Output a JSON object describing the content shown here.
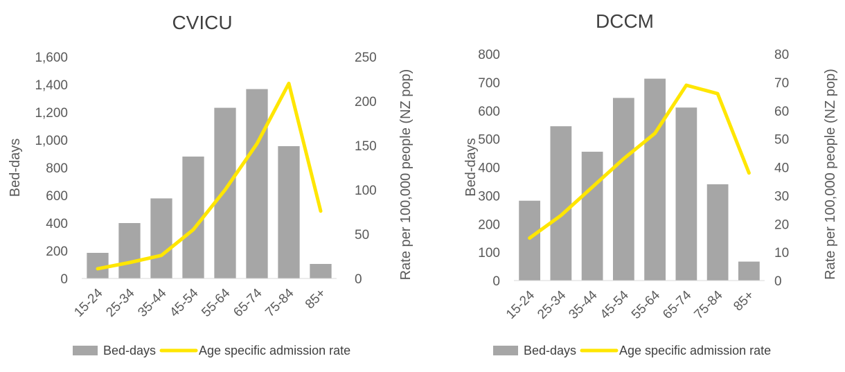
{
  "chart_data": [
    {
      "type": "bar+line",
      "title": "CVICU",
      "categories": [
        "15-24",
        "25-34",
        "35-44",
        "45-54",
        "55-64",
        "65-74",
        "75-84",
        "85+"
      ],
      "ylabel": "Bed-days",
      "y2label": "Rate per 100,000 people (NZ pop)",
      "ylim": [
        0,
        1600
      ],
      "y2lim": [
        0,
        250
      ],
      "yticks": [
        "0",
        "200",
        "400",
        "600",
        "800",
        "1,000",
        "1,200",
        "1,400",
        "1,600"
      ],
      "y2ticks": [
        "0",
        "50",
        "100",
        "150",
        "200",
        "250"
      ],
      "grid": false,
      "legend_position": "bottom",
      "series": [
        {
          "name": "Bed-days",
          "type": "bar",
          "axis": "left",
          "values": [
            185,
            400,
            578,
            880,
            1232,
            1367,
            955,
            105
          ]
        },
        {
          "name": "Age specific admission rate",
          "type": "line",
          "axis": "right",
          "values": [
            11,
            18,
            26,
            55,
            100,
            152,
            220,
            76
          ]
        }
      ]
    },
    {
      "type": "bar+line",
      "title": "DCCM",
      "categories": [
        "15-24",
        "25-34",
        "35-44",
        "45-54",
        "55-64",
        "65-74",
        "75-84",
        "85+"
      ],
      "ylabel": "Bed-days",
      "y2label": "Rate per 100,000 people (NZ pop)",
      "ylim": [
        0,
        800
      ],
      "y2lim": [
        0,
        80
      ],
      "yticks": [
        "0",
        "100",
        "200",
        "300",
        "400",
        "500",
        "600",
        "700",
        "800"
      ],
      "y2ticks": [
        "0",
        "10",
        "20",
        "30",
        "40",
        "50",
        "60",
        "70",
        "80"
      ],
      "grid": false,
      "legend_position": "bottom",
      "series": [
        {
          "name": "Bed-days",
          "type": "bar",
          "axis": "left",
          "values": [
            282,
            545,
            455,
            645,
            713,
            611,
            340,
            67
          ]
        },
        {
          "name": "Age specific admission rate",
          "type": "line",
          "axis": "right",
          "values": [
            15,
            23,
            33,
            43,
            52,
            69,
            66,
            38
          ]
        }
      ]
    }
  ],
  "colors": {
    "bar": "#a6a6a6",
    "line": "#ffe600",
    "text": "#595959",
    "axis": "#d9d9d9"
  }
}
